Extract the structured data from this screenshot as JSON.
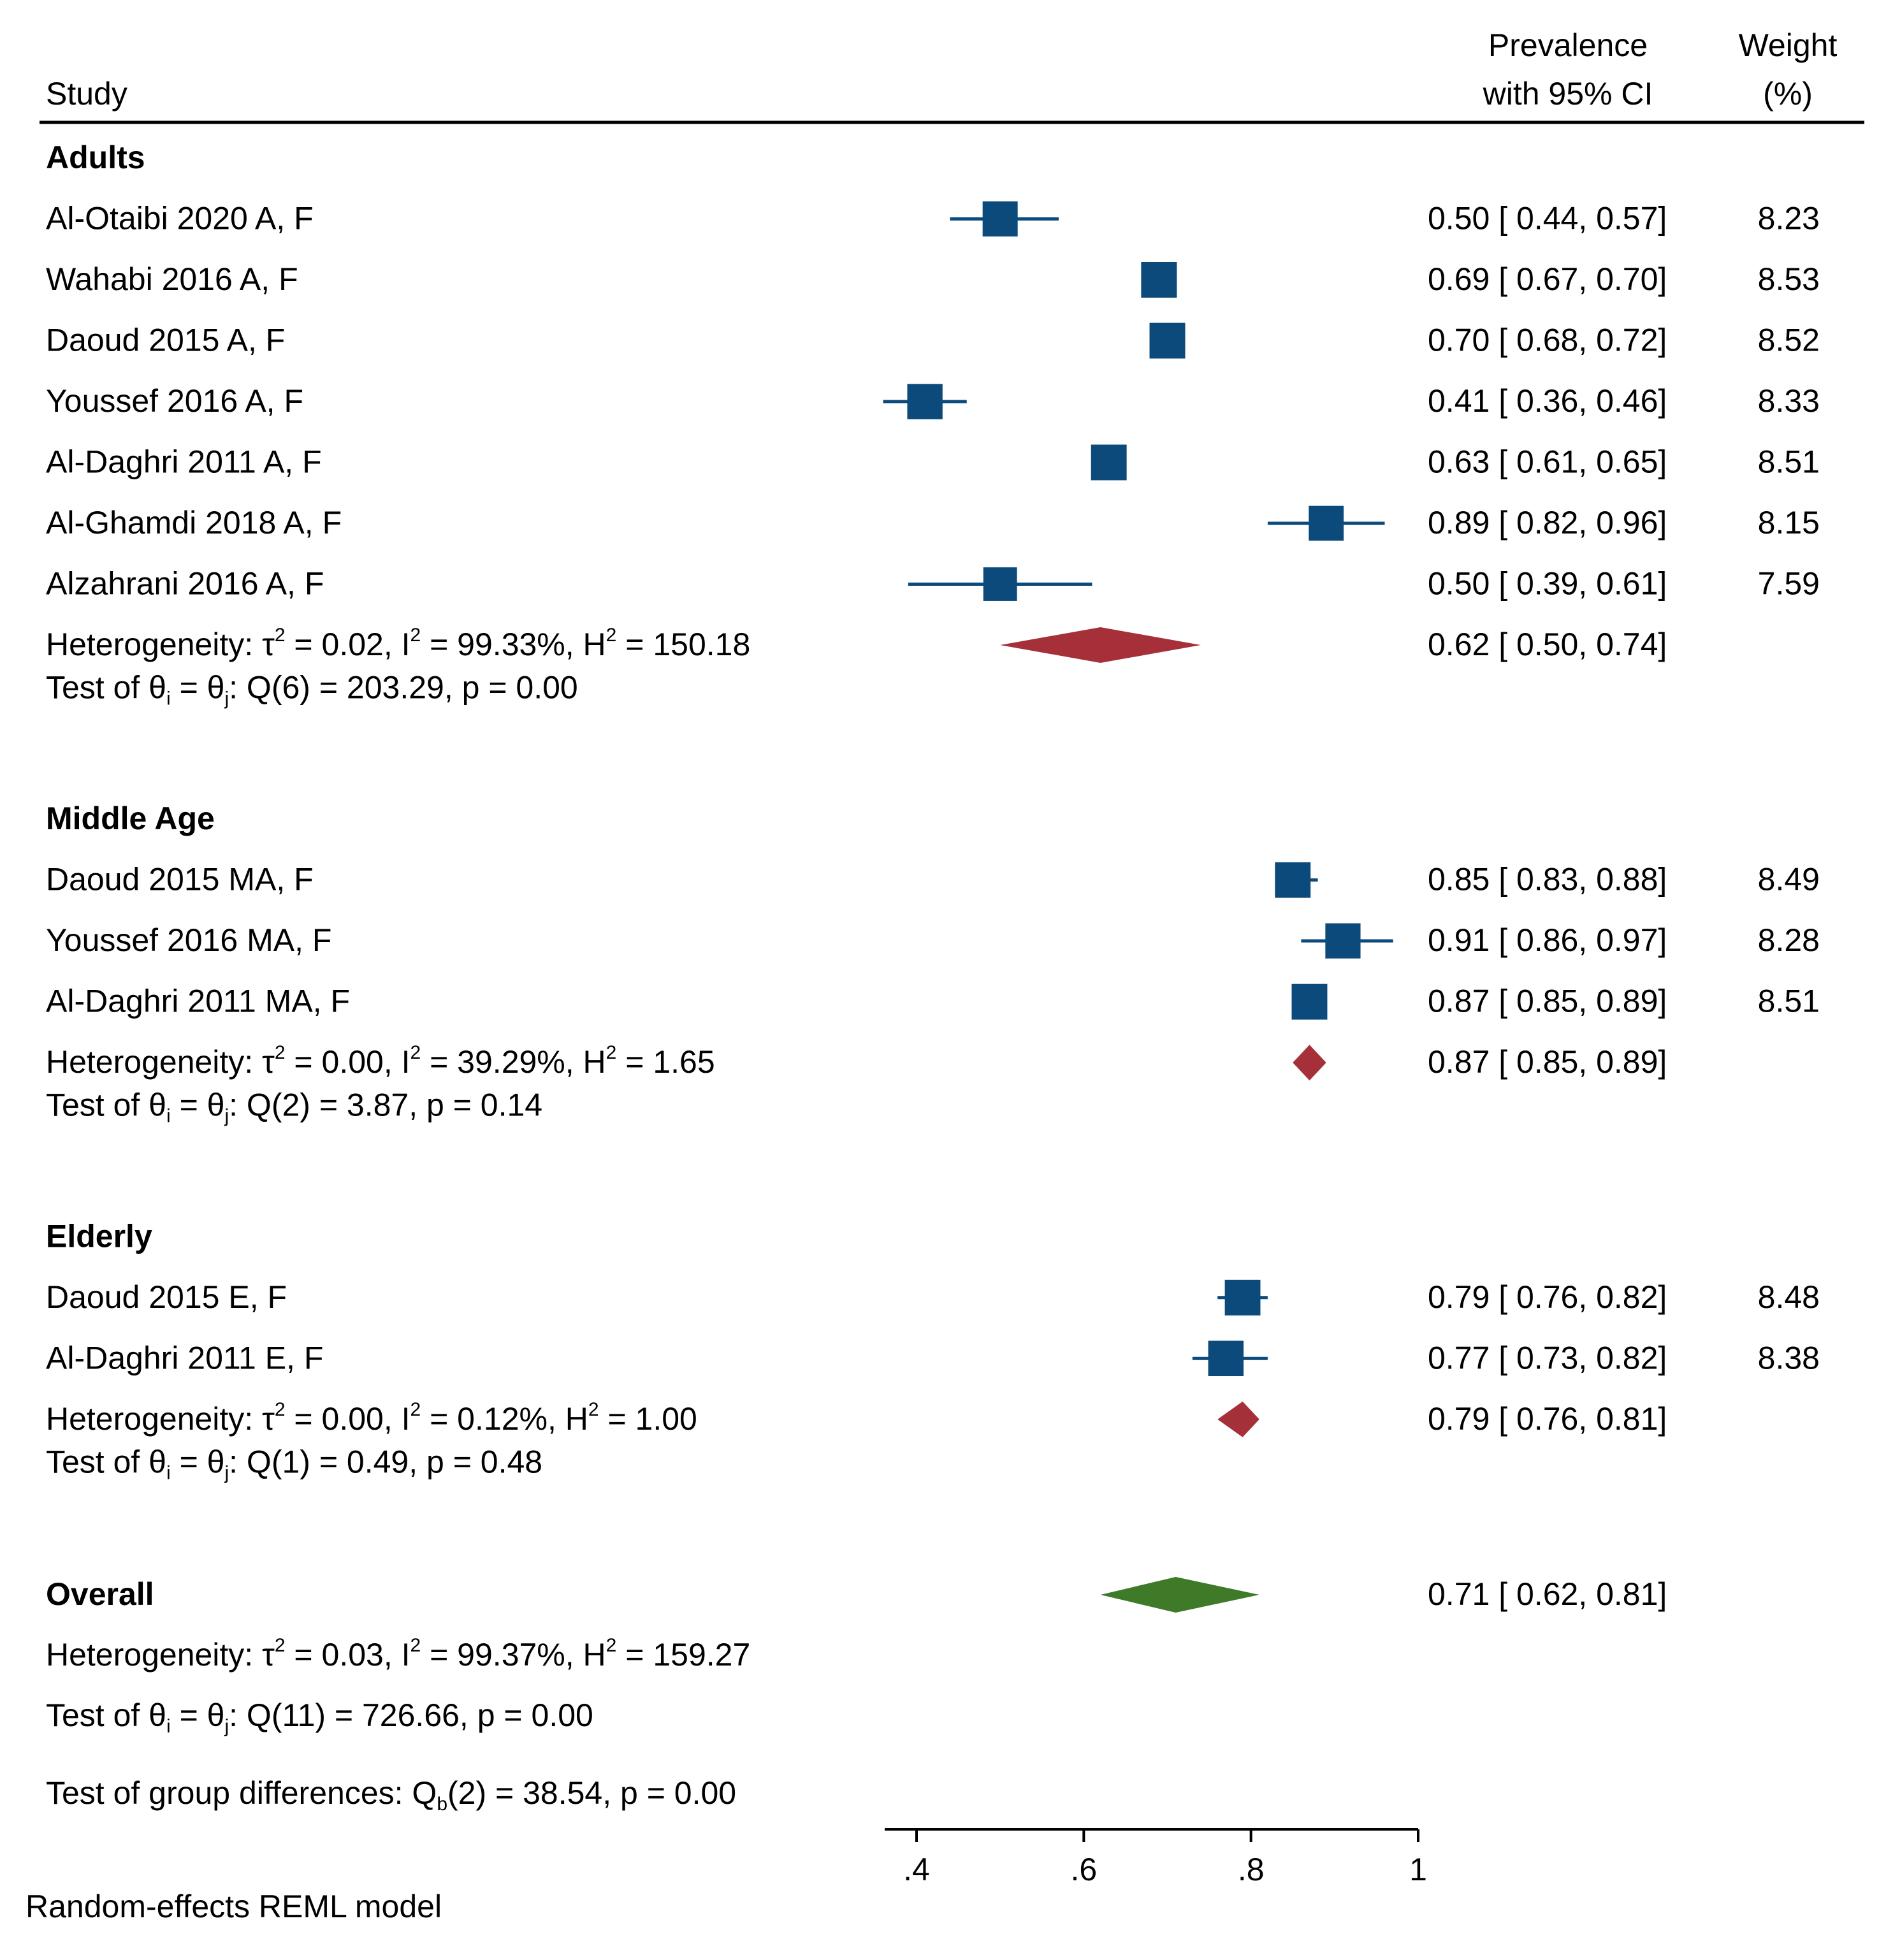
{
  "chart_data": {
    "type": "forest",
    "header": {
      "study": "Study",
      "estimate_line1": "Prevalence",
      "estimate_line2": "with 95% CI",
      "weight_line1": "Weight",
      "weight_line2": "(%)"
    },
    "x_axis": {
      "min": 0.36,
      "max": 1.0,
      "ticks": [
        0.4,
        0.6,
        0.8,
        1.0
      ],
      "tick_labels": [
        ".4",
        ".6",
        ".8",
        "1"
      ]
    },
    "colors": {
      "study": "#0b4a7a",
      "subgroup_diamond": "#a5303a",
      "overall_diamond": "#3f7a28",
      "text": "#000000"
    },
    "groups": [
      {
        "title": "Adults",
        "studies": [
          {
            "label": "Al-Otaibi 2020 A, F",
            "est": 0.5,
            "lo": 0.44,
            "hi": 0.57,
            "weight": 8.23,
            "ci_text": "0.50 [ 0.44,  0.57]",
            "weight_text": "8.23"
          },
          {
            "label": "Wahabi 2016 A, F",
            "est": 0.69,
            "lo": 0.67,
            "hi": 0.7,
            "weight": 8.53,
            "ci_text": "0.69 [ 0.67,  0.70]",
            "weight_text": "8.53"
          },
          {
            "label": "Daoud 2015 A, F",
            "est": 0.7,
            "lo": 0.68,
            "hi": 0.72,
            "weight": 8.52,
            "ci_text": "0.70 [ 0.68,  0.72]",
            "weight_text": "8.52"
          },
          {
            "label": "Youssef 2016 A, F",
            "est": 0.41,
            "lo": 0.36,
            "hi": 0.46,
            "weight": 8.33,
            "ci_text": "0.41 [ 0.36,  0.46]",
            "weight_text": "8.33"
          },
          {
            "label": "Al-Daghri 2011 A, F",
            "est": 0.63,
            "lo": 0.61,
            "hi": 0.65,
            "weight": 8.51,
            "ci_text": "0.63 [ 0.61,  0.65]",
            "weight_text": "8.51"
          },
          {
            "label": "Al-Ghamdi 2018 A, F",
            "est": 0.89,
            "lo": 0.82,
            "hi": 0.96,
            "weight": 8.15,
            "ci_text": "0.89 [ 0.82,  0.96]",
            "weight_text": "8.15"
          },
          {
            "label": "Alzahrani 2016 A, F",
            "est": 0.5,
            "lo": 0.39,
            "hi": 0.61,
            "weight": 7.59,
            "ci_text": "0.50 [ 0.39,  0.61]",
            "weight_text": "7.59"
          }
        ],
        "heterogeneity": {
          "prefix": "Heterogeneity: τ",
          "tau2": " = 0.02, I",
          "i2": " = 99.33%, H",
          "h2": " = 150.18"
        },
        "pooled": {
          "est": 0.62,
          "lo": 0.5,
          "hi": 0.74,
          "ci_text": "0.62 [ 0.50,  0.74]"
        },
        "test": {
          "a": "Test of θ",
          "b": "i",
          "c": " = θ",
          "d": "j",
          "e": ": Q(6) = 203.29, p = 0.00"
        }
      },
      {
        "title": "Middle Age",
        "studies": [
          {
            "label": "Daoud 2015 MA, F",
            "est": 0.85,
            "lo": 0.83,
            "hi": 0.88,
            "weight": 8.49,
            "ci_text": "0.85 [ 0.83,  0.88]",
            "weight_text": "8.49"
          },
          {
            "label": "Youssef 2016 MA, F",
            "est": 0.91,
            "lo": 0.86,
            "hi": 0.97,
            "weight": 8.28,
            "ci_text": "0.91 [ 0.86,  0.97]",
            "weight_text": "8.28"
          },
          {
            "label": "Al-Daghri 2011 MA, F",
            "est": 0.87,
            "lo": 0.85,
            "hi": 0.89,
            "weight": 8.51,
            "ci_text": "0.87 [ 0.85,  0.89]",
            "weight_text": "8.51"
          }
        ],
        "heterogeneity": {
          "prefix": "Heterogeneity: τ",
          "tau2": " = 0.00, I",
          "i2": " = 39.29%, H",
          "h2": " = 1.65"
        },
        "pooled": {
          "est": 0.87,
          "lo": 0.85,
          "hi": 0.89,
          "ci_text": "0.87 [ 0.85,  0.89]"
        },
        "test": {
          "a": "Test of θ",
          "b": "i",
          "c": " = θ",
          "d": "j",
          "e": ": Q(2) = 3.87, p = 0.14"
        }
      },
      {
        "title": "Elderly",
        "studies": [
          {
            "label": "Daoud 2015 E, F",
            "est": 0.79,
            "lo": 0.76,
            "hi": 0.82,
            "weight": 8.48,
            "ci_text": "0.79 [ 0.76,  0.82]",
            "weight_text": "8.48"
          },
          {
            "label": "Al-Daghri 2011 E, F",
            "est": 0.77,
            "lo": 0.73,
            "hi": 0.82,
            "weight": 8.38,
            "ci_text": "0.77 [ 0.73,  0.82]",
            "weight_text": "8.38"
          }
        ],
        "heterogeneity": {
          "prefix": "Heterogeneity: τ",
          "tau2": " = 0.00, I",
          "i2": " = 0.12%, H",
          "h2": " = 1.00"
        },
        "pooled": {
          "est": 0.79,
          "lo": 0.76,
          "hi": 0.81,
          "ci_text": "0.79 [ 0.76,  0.81]"
        },
        "test": {
          "a": "Test of θ",
          "b": "i",
          "c": " = θ",
          "d": "j",
          "e": ": Q(1) = 0.49, p = 0.48"
        }
      }
    ],
    "overall": {
      "title": "Overall",
      "est": 0.71,
      "lo": 0.62,
      "hi": 0.81,
      "ci_text": "0.71 [ 0.62,  0.81]",
      "heterogeneity": {
        "prefix": "Heterogeneity: τ",
        "tau2": " = 0.03, I",
        "i2": " = 99.37%, H",
        "h2": " = 159.27"
      },
      "test": {
        "a": "Test of θ",
        "b": "i",
        "c": " = θ",
        "d": "j",
        "e": ": Q(11) = 726.66, p = 0.00"
      }
    },
    "group_test": {
      "a": "Test of group differences: Q",
      "b": "b",
      "c": "(2) = 38.54, p = 0.00"
    },
    "footnote": "Random-effects REML model"
  }
}
